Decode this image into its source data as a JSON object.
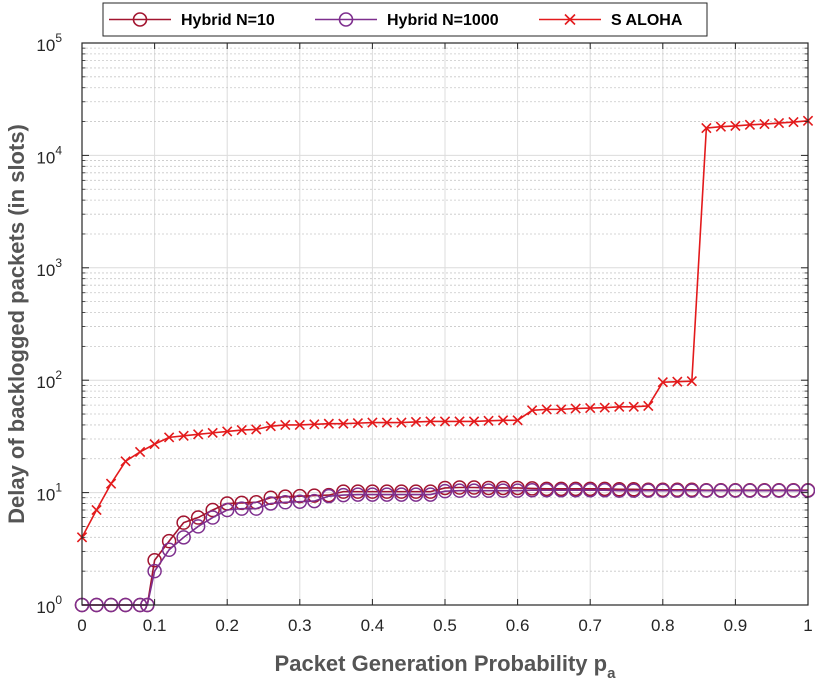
{
  "chart_data": {
    "type": "line",
    "xlabel": "Packet Generation Probability p",
    "xlabel_subscript": "a",
    "ylabel": "Delay of backlogged packets (in slots)",
    "xlim": [
      0,
      1
    ],
    "ylim": [
      1,
      100000
    ],
    "yscale": "log",
    "grid": true,
    "minor_grid": true,
    "legend_position": "top",
    "x_ticks": [
      0,
      0.1,
      0.2,
      0.3,
      0.4,
      0.5,
      0.6,
      0.7,
      0.8,
      0.9,
      1
    ],
    "x_tick_labels": [
      "0",
      "0.1",
      "0.2",
      "0.3",
      "0.4",
      "0.5",
      "0.6",
      "0.7",
      "0.8",
      "0.9",
      "1"
    ],
    "y_ticks": [
      {
        "base": "10",
        "exp": "0",
        "value": 1
      },
      {
        "base": "10",
        "exp": "1",
        "value": 10
      },
      {
        "base": "10",
        "exp": "2",
        "value": 100
      },
      {
        "base": "10",
        "exp": "3",
        "value": 1000
      },
      {
        "base": "10",
        "exp": "4",
        "value": 10000
      },
      {
        "base": "10",
        "exp": "5",
        "value": 100000
      }
    ],
    "series": [
      {
        "name": "Hybrid N=10",
        "color": "#a2142f",
        "marker": "circle",
        "x": [
          0,
          0.02,
          0.04,
          0.06,
          0.08,
          0.09,
          0.1,
          0.12,
          0.14,
          0.16,
          0.18,
          0.2,
          0.22,
          0.24,
          0.26,
          0.28,
          0.3,
          0.32,
          0.34,
          0.36,
          0.38,
          0.4,
          0.42,
          0.44,
          0.46,
          0.48,
          0.5,
          0.52,
          0.54,
          0.56,
          0.58,
          0.6,
          0.62,
          0.64,
          0.66,
          0.68,
          0.7,
          0.72,
          0.74,
          0.76,
          0.78,
          0.8,
          0.82,
          0.84,
          0.86,
          0.88,
          0.9,
          0.92,
          0.94,
          0.96,
          0.98,
          1.0
        ],
        "y": [
          1.0,
          1.0,
          1.0,
          1.0,
          1.0,
          1.0,
          2.5,
          3.7,
          5.4,
          6.0,
          7.0,
          8.0,
          8.1,
          8.2,
          9.0,
          9.2,
          9.3,
          9.4,
          9.5,
          10.2,
          10.2,
          10.2,
          10.2,
          10.2,
          10.2,
          10.2,
          11.0,
          11.1,
          11.1,
          11.0,
          11.0,
          11.0,
          10.9,
          10.8,
          10.8,
          10.8,
          10.8,
          10.8,
          10.7,
          10.7,
          10.6,
          10.6,
          10.6,
          10.6,
          10.5,
          10.5,
          10.5,
          10.5,
          10.5,
          10.5,
          10.5,
          10.5
        ]
      },
      {
        "name": "Hybrid N=1000",
        "color": "#7e2f8e",
        "marker": "circle",
        "x": [
          0,
          0.02,
          0.04,
          0.06,
          0.08,
          0.09,
          0.1,
          0.12,
          0.14,
          0.16,
          0.18,
          0.2,
          0.22,
          0.24,
          0.26,
          0.28,
          0.3,
          0.32,
          0.34,
          0.36,
          0.38,
          0.4,
          0.42,
          0.44,
          0.46,
          0.48,
          0.5,
          0.52,
          0.54,
          0.56,
          0.58,
          0.6,
          0.62,
          0.64,
          0.66,
          0.68,
          0.7,
          0.72,
          0.74,
          0.76,
          0.78,
          0.8,
          0.82,
          0.84,
          0.86,
          0.88,
          0.9,
          0.92,
          0.94,
          0.96,
          0.98,
          1.0
        ],
        "y": [
          1.0,
          1.0,
          1.0,
          1.0,
          1.0,
          1.0,
          2.0,
          3.1,
          4.0,
          5.0,
          6.0,
          7.0,
          7.2,
          7.2,
          8.0,
          8.2,
          8.3,
          8.4,
          9.3,
          9.5,
          9.6,
          9.6,
          9.6,
          9.6,
          9.6,
          9.6,
          10.3,
          10.4,
          10.4,
          10.4,
          10.4,
          10.4,
          10.5,
          10.5,
          10.5,
          10.5,
          10.5,
          10.5,
          10.4,
          10.4,
          10.4,
          10.4,
          10.4,
          10.4,
          10.4,
          10.4,
          10.4,
          10.4,
          10.4,
          10.4,
          10.4,
          10.4
        ]
      },
      {
        "name": "S ALOHA",
        "color": "#e31a1c",
        "marker": "x",
        "x": [
          0,
          0.02,
          0.04,
          0.06,
          0.08,
          0.1,
          0.12,
          0.14,
          0.16,
          0.18,
          0.2,
          0.22,
          0.24,
          0.26,
          0.28,
          0.3,
          0.32,
          0.34,
          0.36,
          0.38,
          0.4,
          0.42,
          0.44,
          0.46,
          0.48,
          0.5,
          0.52,
          0.54,
          0.56,
          0.58,
          0.6,
          0.62,
          0.64,
          0.66,
          0.68,
          0.7,
          0.72,
          0.74,
          0.76,
          0.78,
          0.8,
          0.82,
          0.84,
          0.86,
          0.88,
          0.9,
          0.92,
          0.94,
          0.96,
          0.98,
          1.0
        ],
        "y": [
          4.0,
          7.0,
          12.0,
          19.0,
          23.0,
          27.0,
          31.0,
          32.0,
          33.0,
          34.0,
          35.0,
          36.0,
          36.5,
          39.0,
          40.0,
          40.0,
          40.5,
          41.0,
          41.0,
          41.5,
          42.0,
          42.0,
          42.0,
          42.5,
          43.0,
          43.0,
          43.0,
          43.0,
          43.5,
          44.0,
          44.0,
          54.0,
          55.0,
          55.0,
          56.0,
          56.5,
          57.0,
          58.0,
          58.0,
          59.0,
          96.0,
          97.0,
          98.0,
          17500.0,
          18000.0,
          18300.0,
          18700.0,
          19000.0,
          19400.0,
          19800.0,
          20300.0
        ]
      }
    ]
  }
}
